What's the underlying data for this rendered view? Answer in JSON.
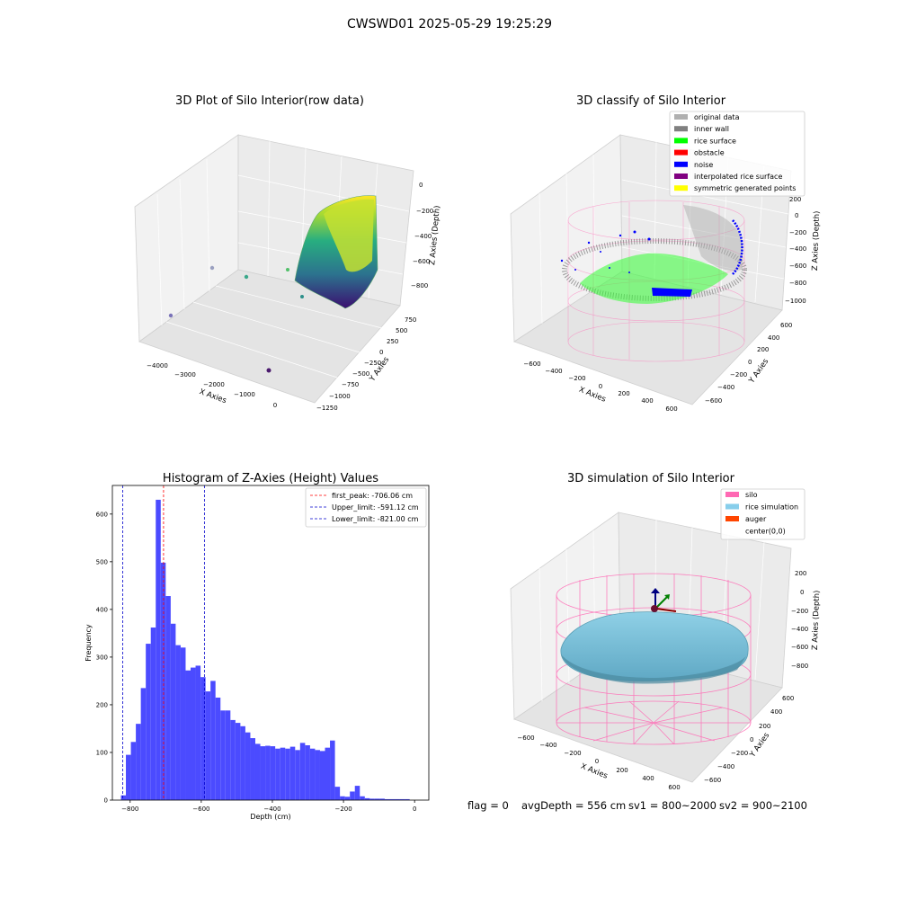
{
  "figure": {
    "suptitle": "CWSWD01 2025-05-29 19:25:29",
    "footer": {
      "flag": "flag = 0",
      "avg_depth": "avgDepth = 556 cm",
      "sv1": "sv1 = 800~2000",
      "sv2": "sv2 = 900~2100"
    }
  },
  "panels": {
    "raw": {
      "title": "3D Plot of Silo Interior(row data)",
      "xlabel": "X Axies",
      "ylabel": "Y Axies",
      "zlabel": "Z Axies (Depth)",
      "xticks": [
        "−4000",
        "−3000",
        "−2000",
        "−1000",
        "0"
      ],
      "yticks": [
        "750",
        "500",
        "250",
        "0",
        "−250",
        "−500",
        "−750",
        "−1000",
        "−1250"
      ],
      "zticks": [
        "0",
        "−200",
        "−400",
        "−600",
        "−800"
      ]
    },
    "classify": {
      "title": "3D classify of Silo Interior",
      "xlabel": "X Axies",
      "ylabel": "Y Axies",
      "zlabel": "Z Axies (Depth)",
      "xticks": [
        "−600",
        "−400",
        "−200",
        "0",
        "200",
        "400",
        "600"
      ],
      "yticks": [
        "600",
        "400",
        "200",
        "0",
        "−200",
        "−400",
        "−600"
      ],
      "zticks": [
        "200",
        "0",
        "−200",
        "−400",
        "−600",
        "−800",
        "−1000"
      ],
      "legend": [
        {
          "label": "original data",
          "color": "#b0b0b0"
        },
        {
          "label": "inner wall",
          "color": "#808080"
        },
        {
          "label": "rice surface",
          "color": "#00ff00"
        },
        {
          "label": "obstacle",
          "color": "#ff0000"
        },
        {
          "label": "noise",
          "color": "#0000ff"
        },
        {
          "label": "interpolated rice surface",
          "color": "#800080"
        },
        {
          "label": "symmetric generated points",
          "color": "#ffff00"
        }
      ]
    },
    "simulation": {
      "title": "3D simulation of Silo Interior",
      "xlabel": "X Axies",
      "ylabel": "Y Axies",
      "zlabel": "Z Axies (Depth)",
      "xticks": [
        "−600",
        "−400",
        "−200",
        "0",
        "200",
        "400",
        "600"
      ],
      "yticks": [
        "600",
        "400",
        "200",
        "0",
        "−200",
        "−400",
        "−600"
      ],
      "zticks": [
        "200",
        "0",
        "−200",
        "−400",
        "−600",
        "−800"
      ],
      "legend": [
        {
          "label": "silo",
          "color": "#ff69b4"
        },
        {
          "label": "rice simulation",
          "color": "#87ceeb"
        },
        {
          "label": "auger",
          "color": "#ff4500"
        },
        {
          "label": "center(0,0)",
          "color": ""
        }
      ]
    }
  },
  "chart_data": {
    "type": "bar",
    "title": "Histogram of Z-Axies (Height) Values",
    "xlabel": "Depth (cm)",
    "ylabel": "Frequency",
    "xlim": [
      -850,
      40
    ],
    "ylim": [
      0,
      660
    ],
    "bar_color": "#4b4bff",
    "bin_width": 14,
    "xticks": [
      -800,
      -600,
      -400,
      -200,
      0
    ],
    "yticks": [
      0,
      100,
      200,
      300,
      400,
      500,
      600
    ],
    "bins_start": [
      -826,
      -812,
      -798,
      -784,
      -770,
      -756,
      -742,
      -728,
      -714,
      -700,
      -686,
      -672,
      -658,
      -644,
      -630,
      -616,
      -602,
      -588,
      -574,
      -560,
      -546,
      -532,
      -518,
      -504,
      -490,
      -476,
      -462,
      -448,
      -434,
      -420,
      -406,
      -392,
      -378,
      -364,
      -350,
      -336,
      -322,
      -308,
      -294,
      -280,
      -266,
      -252,
      -238,
      -224,
      -210,
      -196,
      -182,
      -168,
      -154,
      -140,
      -126,
      -112,
      -98,
      -84,
      -70,
      -56,
      -42,
      -28
    ],
    "counts": [
      10,
      95,
      122,
      160,
      235,
      328,
      362,
      630,
      498,
      428,
      370,
      325,
      320,
      272,
      278,
      282,
      258,
      228,
      250,
      215,
      188,
      188,
      168,
      162,
      155,
      142,
      130,
      118,
      113,
      114,
      113,
      108,
      110,
      108,
      112,
      105,
      120,
      115,
      108,
      105,
      103,
      110,
      125,
      28,
      8,
      7,
      18,
      30,
      8,
      4,
      3,
      3,
      3,
      2,
      2,
      2,
      2,
      2
    ],
    "vlines": [
      {
        "label": "first_peak: -706.06 cm",
        "x": -706.06,
        "color": "#ff0000"
      },
      {
        "label": "Upper_limit: -591.12 cm",
        "x": -591.12,
        "color": "#0000cc"
      },
      {
        "label": "Lower_limit: -821.00 cm",
        "x": -821.0,
        "color": "#0000cc"
      }
    ]
  }
}
